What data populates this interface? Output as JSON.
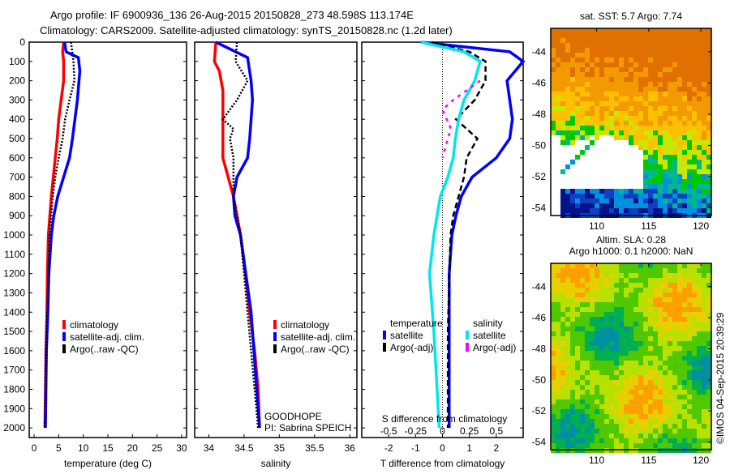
{
  "title": {
    "line1": "Argo profile: IF 6900936_136 26-Aug-2015 20150828_273 48.598S 113.174E",
    "line2": "Climatology: CARS2009. Satellite-adjusted climatology: synTS_20150828.nc (1.2d later)"
  },
  "credit": "©IMOS 04-Sep-2015 20:39:29",
  "chart_data": [
    {
      "type": "line",
      "id": "temp",
      "xlabel": "temperature (deg C)",
      "xlim": [
        -1,
        31
      ],
      "xticks": [
        0,
        5,
        10,
        15,
        20,
        25,
        30
      ],
      "ylim": [
        0,
        2050
      ],
      "yticks": [
        0,
        100,
        200,
        300,
        400,
        500,
        600,
        700,
        800,
        900,
        1000,
        1100,
        1200,
        1300,
        1400,
        1500,
        1600,
        1700,
        1800,
        1900,
        2000
      ],
      "legend": [
        "climatology",
        "satellite-adj. clim.",
        "Argo(..raw -QC)"
      ],
      "series": [
        {
          "name": "climatology",
          "color": "#ff0000",
          "depth": [
            0,
            50,
            100,
            200,
            300,
            400,
            500,
            600,
            700,
            800,
            900,
            1000,
            1200,
            1400,
            1600,
            2000
          ],
          "values": [
            6,
            5.8,
            6,
            6,
            5.5,
            5,
            4.7,
            4.3,
            3.9,
            3.5,
            3.2,
            2.9,
            2.7,
            2.6,
            2.4,
            2.2
          ]
        },
        {
          "name": "satellite-adj. clim.",
          "color": "#0000ff",
          "depth": [
            0,
            50,
            80,
            150,
            300,
            400,
            500,
            600,
            700,
            800,
            900,
            1000,
            1200,
            1400,
            1600,
            2000
          ],
          "values": [
            6.2,
            6.5,
            9,
            9.3,
            8.8,
            8.3,
            7.8,
            7.2,
            6,
            4.8,
            4,
            3.5,
            3,
            2.8,
            2.5,
            2.3
          ]
        },
        {
          "name": "Argo(..raw -QC)",
          "color": "#000000",
          "dash": "2,2",
          "depth": [
            0,
            100,
            200,
            300,
            400,
            500,
            600,
            700,
            800,
            1000,
            1400,
            2000
          ],
          "values": [
            7.5,
            8,
            8.2,
            7.2,
            6.3,
            5.8,
            5,
            4.3,
            3.8,
            3.1,
            2.7,
            2.2
          ]
        }
      ]
    },
    {
      "type": "line",
      "id": "sal",
      "xlabel": "salinity",
      "xlim": [
        33.8,
        36.1
      ],
      "xticks": [
        34,
        34.5,
        35,
        35.5,
        36
      ],
      "ylim": [
        0,
        2050
      ],
      "legend": [
        "climatology",
        "satellite-adj. clim.",
        "Argo(..raw -QC)"
      ],
      "annotation": [
        "GOODHOPE",
        "PI: Sabrina SPEICH"
      ],
      "series": [
        {
          "name": "climatology",
          "color": "#ff0000",
          "depth": [
            0,
            100,
            150,
            250,
            400,
            600,
            800,
            1000,
            1200,
            1400,
            1600,
            1800,
            2000
          ],
          "values": [
            34.1,
            34.08,
            34.15,
            34.2,
            34.2,
            34.2,
            34.35,
            34.45,
            34.52,
            34.58,
            34.65,
            34.7,
            34.72
          ]
        },
        {
          "name": "satellite-adj. clim.",
          "color": "#0000ff",
          "depth": [
            0,
            80,
            200,
            300,
            500,
            600,
            700,
            800,
            900,
            1000,
            1400,
            2000
          ],
          "values": [
            34.1,
            34.55,
            34.6,
            34.62,
            34.58,
            34.55,
            34.4,
            34.35,
            34.37,
            34.45,
            34.6,
            34.72
          ]
        },
        {
          "name": "Argo(..raw -QC)",
          "color": "#000000",
          "dash": "2,2",
          "depth": [
            0,
            100,
            200,
            300,
            400,
            450,
            500,
            600,
            800,
            1000,
            1400,
            2000
          ],
          "values": [
            34.4,
            34.38,
            34.55,
            34.4,
            34.2,
            34.35,
            34.3,
            34.35,
            34.35,
            34.45,
            34.55,
            34.7
          ]
        }
      ]
    },
    {
      "type": "line",
      "id": "diff",
      "xlabel": "T difference from climatology",
      "xlim": [
        -3,
        3
      ],
      "xticks": [
        -2,
        -1,
        0,
        1,
        2
      ],
      "x2label": "S difference from climatology",
      "x2ticks": [
        "-0.5",
        "-0.25",
        "0",
        "0.25",
        "0.5"
      ],
      "ylim": [
        0,
        2050
      ],
      "legend_t": {
        "title": "temperature",
        "items": [
          "satellite",
          "Argo(-adj)"
        ]
      },
      "legend_s": {
        "title": "salinity",
        "items": [
          "satellite",
          "Argo(-adj)"
        ]
      },
      "series": [
        {
          "name": "T satellite",
          "color": "#0000ff",
          "units": "T",
          "depth": [
            0,
            50,
            100,
            200,
            300,
            400,
            500,
            600,
            700,
            800,
            900,
            1000,
            1200,
            1500,
            2000
          ],
          "values": [
            -0.8,
            2.5,
            3,
            2.4,
            2.5,
            2.6,
            2.5,
            2,
            1.1,
            0.7,
            0.5,
            0.35,
            0.25,
            0.25,
            0.25
          ]
        },
        {
          "name": "T Argo(-adj)",
          "color": "#000000",
          "dash": "7,4",
          "units": "T",
          "depth": [
            0,
            50,
            100,
            200,
            300,
            400,
            500,
            600,
            700,
            800,
            900,
            1000,
            1500,
            2000
          ],
          "values": [
            -0.4,
            1,
            1.6,
            1.6,
            1.2,
            0.5,
            1.3,
            0.9,
            0.8,
            0.6,
            0.4,
            0.3,
            0.2,
            0.2
          ]
        },
        {
          "name": "S satellite",
          "color": "#00e5ee",
          "units": "S",
          "depth": [
            0,
            50,
            100,
            200,
            300,
            400,
            500,
            600,
            700,
            800,
            1000,
            1200,
            1500,
            2000
          ],
          "values": [
            -0.2,
            0.2,
            0.35,
            0.3,
            0.2,
            0.15,
            0.12,
            0.1,
            0.05,
            -0.02,
            -0.08,
            -0.12,
            -0.08,
            -0.03
          ]
        },
        {
          "name": "S Argo(-adj)",
          "color": "#ff00ff",
          "dash": "4,6",
          "units": "S",
          "depth": [
            200,
            300,
            350,
            450,
            500,
            600
          ],
          "values": [
            0.35,
            0.1,
            0.0,
            0.08,
            0.05,
            0.0
          ]
        }
      ]
    },
    {
      "type": "heatmap",
      "id": "sst",
      "title": "sat. SST: 5.7 Argo: 7.74",
      "xticks": [
        110,
        115,
        120
      ],
      "yticks": [
        -44,
        -46,
        -48,
        -50,
        -52,
        -54
      ],
      "xlim": [
        105.6,
        121
      ],
      "ylim": [
        -54.5,
        -42.5
      ]
    },
    {
      "type": "heatmap",
      "id": "sla",
      "title1": "Altim. SLA: 0.28",
      "title2": "Argo h1000: 0.1 h2000: NaN",
      "xticks": [
        110,
        115,
        120
      ],
      "yticks": [
        -44,
        -46,
        -48,
        -50,
        -52,
        -54
      ],
      "xlim": [
        105.6,
        121
      ],
      "ylim": [
        -54.5,
        -42.5
      ]
    }
  ]
}
